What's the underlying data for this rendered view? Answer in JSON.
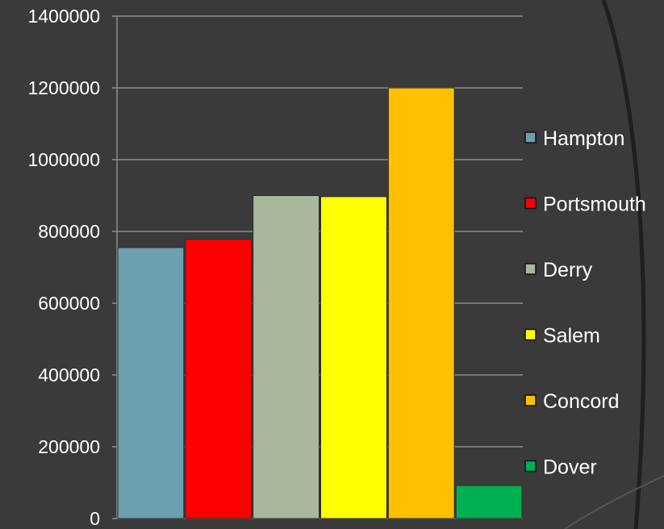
{
  "chart_data": {
    "type": "bar",
    "title": "",
    "xlabel": "",
    "ylabel": "",
    "categories": [
      "Hampton",
      "Portsmouth",
      "Derry",
      "Salem",
      "Concord",
      "Dover"
    ],
    "values": [
      755000,
      778000,
      900000,
      897000,
      1200000,
      92000
    ],
    "colors": [
      "#6c9fb0",
      "#ff0000",
      "#a9b79c",
      "#ffff00",
      "#ffc000",
      "#00b050"
    ],
    "ylim": [
      0,
      1400000
    ],
    "yticks": [
      "0",
      "200000",
      "400000",
      "600000",
      "800000",
      "1000000",
      "1200000",
      "1400000"
    ],
    "grid": true,
    "legend_position": "right",
    "legend": [
      "Hampton",
      "Portsmouth",
      "Derry",
      "Salem",
      "Concord",
      "Dover"
    ]
  },
  "theme": {
    "background": "#3a3a3a",
    "gridline": "#8c8c8c",
    "text": "#ffffff",
    "decor_curve": "#1f1f1f"
  }
}
